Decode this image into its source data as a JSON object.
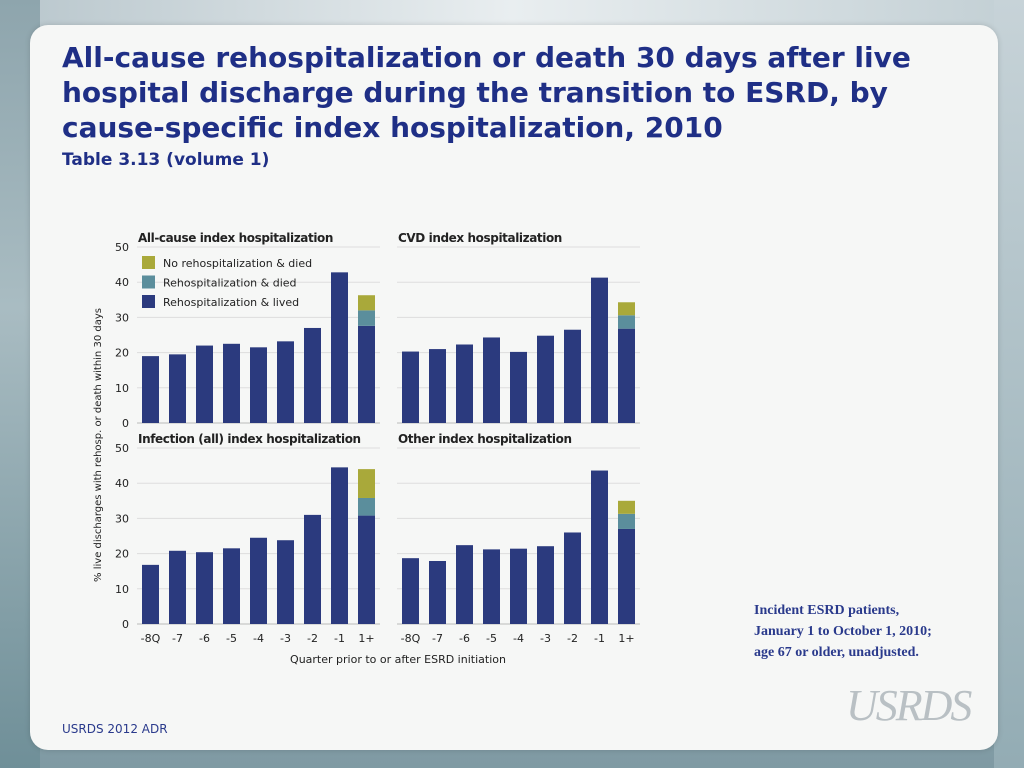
{
  "slide": {
    "title_lines": [
      "All-cause rehospitalization or death 30 days after live",
      "hospital discharge during the transition to ESRD, by",
      "cause-specific index hospitalization, 2010"
    ],
    "subtitle": "Table 3.13 (volume 1)",
    "note_lines": [
      "Incident ESRD patients,",
      "January 1 to October 1, 2010;",
      "age 67 or older, unadjusted."
    ],
    "footer": "USRDS 2012 ADR",
    "logo_text": "USRDS"
  },
  "colors": {
    "title": "#1f2f86",
    "rehosp_lived": "#2b3a7e",
    "rehosp_died": "#5b8e9c",
    "no_rehosp_died": "#a9a93a"
  },
  "chart_data": {
    "type": "bar",
    "stacked": true,
    "xlabel": "Quarter prior to or after ESRD initiation",
    "ylabel": "% live discharges with rehosp. or death within 30 days",
    "categories": [
      "-8Q",
      "-7",
      "-6",
      "-5",
      "-4",
      "-3",
      "-2",
      "-1",
      "1+"
    ],
    "ylim": [
      0,
      50
    ],
    "yticks": [
      0,
      10,
      20,
      30,
      40,
      50
    ],
    "grid": true,
    "legend": {
      "placement": "top-left of first panel",
      "entries": [
        "No rehospitalization & died",
        "Rehospitalization & died",
        "Rehospitalization & lived"
      ]
    },
    "panels": [
      {
        "title": "All-cause index hospitalization",
        "series": [
          {
            "name": "Rehospitalization & lived",
            "values": [
              19.0,
              19.5,
              22.0,
              22.5,
              21.5,
              23.2,
              27.0,
              42.8,
              27.6
            ]
          },
          {
            "name": "Rehospitalization & died",
            "values": [
              0,
              0,
              0,
              0,
              0,
              0,
              0,
              0,
              4.4
            ]
          },
          {
            "name": "No rehospitalization & died",
            "values": [
              0,
              0,
              0,
              0,
              0,
              0,
              0,
              0,
              4.3
            ]
          }
        ]
      },
      {
        "title": "CVD index hospitalization",
        "series": [
          {
            "name": "Rehospitalization & lived",
            "values": [
              20.3,
              21.0,
              22.3,
              24.3,
              20.2,
              24.8,
              26.5,
              41.3,
              26.8
            ]
          },
          {
            "name": "Rehospitalization & died",
            "values": [
              0,
              0,
              0,
              0,
              0,
              0,
              0,
              0,
              3.8
            ]
          },
          {
            "name": "No rehospitalization & died",
            "values": [
              0,
              0,
              0,
              0,
              0,
              0,
              0,
              0,
              3.7
            ]
          }
        ]
      },
      {
        "title": "Infection (all) index hospitalization",
        "series": [
          {
            "name": "Rehospitalization & lived",
            "values": [
              16.8,
              20.8,
              20.4,
              21.5,
              24.5,
              23.8,
              31.0,
              44.5,
              30.8
            ]
          },
          {
            "name": "Rehospitalization & died",
            "values": [
              0,
              0,
              0,
              0,
              0,
              0,
              0,
              0,
              5.0
            ]
          },
          {
            "name": "No rehospitalization & died",
            "values": [
              0,
              0,
              0,
              0,
              0,
              0,
              0,
              0,
              8.2
            ]
          }
        ]
      },
      {
        "title": "Other index hospitalization",
        "series": [
          {
            "name": "Rehospitalization & lived",
            "values": [
              18.7,
              17.9,
              22.4,
              21.2,
              21.4,
              22.1,
              26.0,
              43.6,
              27.0
            ]
          },
          {
            "name": "Rehospitalization & died",
            "values": [
              0,
              0,
              0,
              0,
              0,
              0,
              0,
              0,
              4.3
            ]
          },
          {
            "name": "No rehospitalization & died",
            "values": [
              0,
              0,
              0,
              0,
              0,
              0,
              0,
              0,
              3.7
            ]
          }
        ]
      }
    ]
  }
}
